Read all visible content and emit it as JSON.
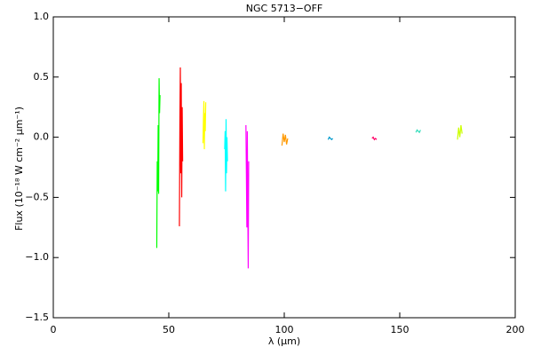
{
  "chart_data": {
    "type": "line",
    "title": "NGC 5713−OFF",
    "xlabel": "λ (μm)",
    "ylabel": "Flux (10⁻¹⁸ W cm⁻² μm⁻¹)",
    "xlim": [
      0,
      200
    ],
    "xticks": [
      0,
      50,
      100,
      150,
      200
    ],
    "ylim": [
      -1.5,
      1
    ],
    "yticks": [
      {
        "value": -1.5,
        "label": "−1.5"
      },
      {
        "value": -1,
        "label": "−1.0"
      },
      {
        "value": -0.5,
        "label": "−0.5"
      },
      {
        "value": 0,
        "label": "0.0"
      },
      {
        "value": 0.5,
        "label": "0.5"
      },
      {
        "value": 1,
        "label": "1.0"
      }
    ],
    "series": [
      {
        "color": "#00ff00",
        "x": [
          44.8,
          45.0,
          45.2,
          45.4,
          45.6,
          45.8,
          46.0,
          46.2
        ],
        "values": [
          -0.92,
          -0.2,
          -0.45,
          0.1,
          -0.47,
          0.49,
          0.2,
          0.35
        ]
      },
      {
        "color": "#ff0000",
        "x": [
          54.6,
          54.8,
          55.0,
          55.2,
          55.4,
          55.6,
          55.8,
          56.0
        ],
        "values": [
          -0.74,
          0.1,
          0.58,
          -0.3,
          0.45,
          -0.5,
          0.25,
          -0.2
        ]
      },
      {
        "color": "#ffff00",
        "x": [
          64.8,
          65.0,
          65.2,
          65.4,
          65.6,
          65.8,
          66.0
        ],
        "values": [
          -0.05,
          0.15,
          0.3,
          -0.1,
          0.2,
          0.05,
          0.29
        ]
      },
      {
        "color": "#00ffff",
        "x": [
          74.2,
          74.4,
          74.6,
          74.8,
          75.0,
          75.2,
          75.4
        ],
        "values": [
          -0.1,
          0.05,
          -0.45,
          0.15,
          -0.3,
          0.0,
          -0.2
        ]
      },
      {
        "color": "#ff00ff",
        "x": [
          83.4,
          83.6,
          83.8,
          84.0,
          84.2,
          84.4,
          84.6
        ],
        "values": [
          0.1,
          -0.3,
          -0.75,
          0.05,
          -0.6,
          -1.09,
          -0.2
        ]
      },
      {
        "color": "#ff9900",
        "x": [
          99.0,
          99.5,
          100.0,
          100.5,
          101.0,
          101.5
        ],
        "values": [
          -0.07,
          0.03,
          -0.04,
          0.02,
          -0.06,
          -0.01
        ]
      },
      {
        "color": "#0099cc",
        "x": [
          119.0,
          119.5,
          120.0,
          120.5,
          121.0
        ],
        "values": [
          -0.02,
          0.0,
          -0.01,
          -0.02,
          -0.01
        ]
      },
      {
        "color": "#ff0066",
        "x": [
          138.0,
          138.5,
          139.0,
          139.5,
          140.0
        ],
        "values": [
          -0.01,
          0.0,
          -0.02,
          -0.01,
          -0.02
        ]
      },
      {
        "color": "#33ddbb",
        "x": [
          157.0,
          157.5,
          158.0,
          158.5,
          159.0
        ],
        "values": [
          0.04,
          0.06,
          0.05,
          0.04,
          0.06
        ]
      },
      {
        "color": "#ccff00",
        "x": [
          175.0,
          175.5,
          176.0,
          176.5,
          177.0
        ],
        "values": [
          -0.02,
          0.08,
          0.0,
          0.1,
          0.03
        ]
      }
    ]
  }
}
